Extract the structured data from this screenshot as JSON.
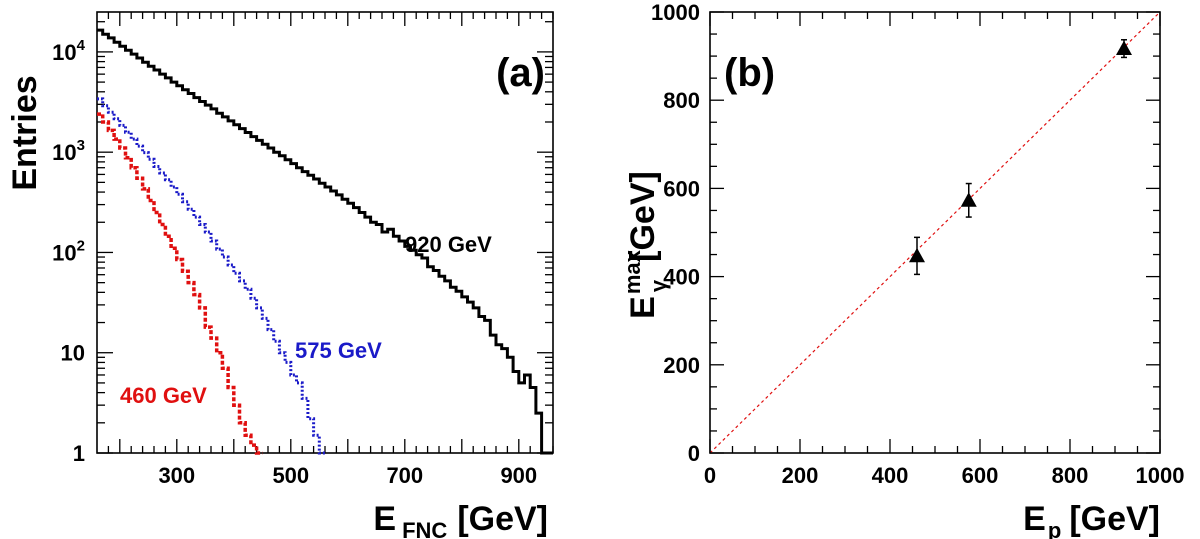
{
  "chart_data": [
    {
      "type": "line",
      "panel_label": "(a)",
      "xlabel_main": "E",
      "xlabel_sub": "FNC",
      "xlabel_unit": "[GeV]",
      "ylabel": "Entries",
      "xlim": [
        160,
        960
      ],
      "ylim": [
        1,
        25000
      ],
      "yscale": "log",
      "x_ticks": [
        "300",
        "500",
        "700",
        "900"
      ],
      "y_ticks": [
        {
          "base": "1",
          "exp": ""
        },
        {
          "base": "10",
          "exp": ""
        },
        {
          "base": "10",
          "exp": "2"
        },
        {
          "base": "10",
          "exp": "3"
        },
        {
          "base": "10",
          "exp": "4"
        }
      ],
      "colors": {
        "s920": "#000000",
        "s575": "#1a1ac8",
        "s460": "#e01010"
      },
      "series": [
        {
          "name": "920 GeV",
          "label": "920 GeV",
          "x": [
            160,
            170,
            180,
            190,
            200,
            210,
            220,
            230,
            240,
            250,
            260,
            270,
            280,
            290,
            300,
            310,
            320,
            330,
            340,
            350,
            360,
            370,
            380,
            390,
            400,
            410,
            420,
            430,
            440,
            450,
            460,
            470,
            480,
            490,
            500,
            510,
            520,
            530,
            540,
            550,
            560,
            570,
            580,
            590,
            600,
            610,
            620,
            630,
            640,
            650,
            660,
            670,
            680,
            690,
            700,
            710,
            720,
            730,
            740,
            750,
            760,
            770,
            780,
            790,
            800,
            810,
            820,
            830,
            840,
            850,
            860,
            870,
            880,
            890,
            900,
            910,
            920,
            930,
            940,
            950
          ],
          "values": [
            16500,
            15000,
            13800,
            12500,
            11400,
            10400,
            9500,
            8700,
            7900,
            7200,
            6600,
            6000,
            5500,
            5000,
            4600,
            4200,
            3850,
            3500,
            3200,
            2950,
            2700,
            2450,
            2250,
            2050,
            1880,
            1720,
            1570,
            1430,
            1310,
            1200,
            1100,
            1000,
            920,
            840,
            770,
            700,
            640,
            590,
            540,
            490,
            450,
            410,
            375,
            340,
            310,
            280,
            250,
            225,
            200,
            190,
            160,
            170,
            145,
            130,
            115,
            105,
            95,
            88,
            72,
            66,
            58,
            52,
            45,
            41,
            36,
            32,
            28,
            23,
            21,
            15,
            12,
            11,
            9,
            6.5,
            5,
            6,
            4.5,
            2.5,
            1,
            1
          ]
        },
        {
          "name": "575 GeV",
          "label": "575 GeV",
          "x": [
            160,
            170,
            180,
            190,
            200,
            210,
            220,
            230,
            240,
            250,
            260,
            270,
            280,
            290,
            300,
            310,
            320,
            330,
            340,
            350,
            360,
            370,
            380,
            390,
            400,
            410,
            420,
            430,
            440,
            450,
            460,
            470,
            480,
            490,
            500,
            510,
            520,
            530,
            540,
            550
          ],
          "values": [
            3400,
            2900,
            2500,
            2150,
            1850,
            1580,
            1350,
            1150,
            990,
            850,
            720,
            620,
            530,
            450,
            380,
            320,
            270,
            225,
            190,
            160,
            130,
            108,
            90,
            75,
            62,
            52,
            43,
            35,
            28,
            22,
            17,
            13,
            10,
            8,
            6,
            5,
            3.5,
            2.2,
            1.5,
            1
          ]
        },
        {
          "name": "460 GeV",
          "label": "460 GeV",
          "x": [
            160,
            170,
            180,
            190,
            200,
            210,
            220,
            230,
            240,
            250,
            260,
            270,
            280,
            290,
            300,
            310,
            320,
            330,
            340,
            350,
            360,
            370,
            380,
            390,
            400,
            410,
            420,
            430,
            440
          ],
          "values": [
            2400,
            2000,
            1650,
            1350,
            1100,
            880,
            700,
            550,
            430,
            330,
            250,
            190,
            145,
            110,
            85,
            65,
            50,
            38,
            28,
            18,
            14,
            10,
            7,
            4.5,
            3,
            2,
            1.5,
            1.2,
            1
          ]
        }
      ]
    },
    {
      "type": "scatter",
      "panel_label": "(b)",
      "xlabel_main": "E",
      "xlabel_sub": "p",
      "xlabel_unit": "[GeV]",
      "ylabel_main": "E",
      "ylabel_sub": "γ",
      "ylabel_sup": "max",
      "ylabel_unit": "[GeV]",
      "xlim": [
        0,
        1000
      ],
      "ylim": [
        0,
        1000
      ],
      "x_ticks": [
        "0",
        "200",
        "400",
        "600",
        "800",
        "1000"
      ],
      "y_ticks": [
        "0",
        "200",
        "400",
        "600",
        "800",
        "1000"
      ],
      "colors": {
        "points": "#000000",
        "diagonal": "#e01010"
      },
      "points": [
        {
          "x": 460,
          "y": 447,
          "err": 42
        },
        {
          "x": 575,
          "y": 573,
          "err": 38
        },
        {
          "x": 920,
          "y": 917,
          "err": 20
        }
      ],
      "reference_line": {
        "x": [
          0,
          1000
        ],
        "y": [
          0,
          1000
        ]
      }
    }
  ]
}
